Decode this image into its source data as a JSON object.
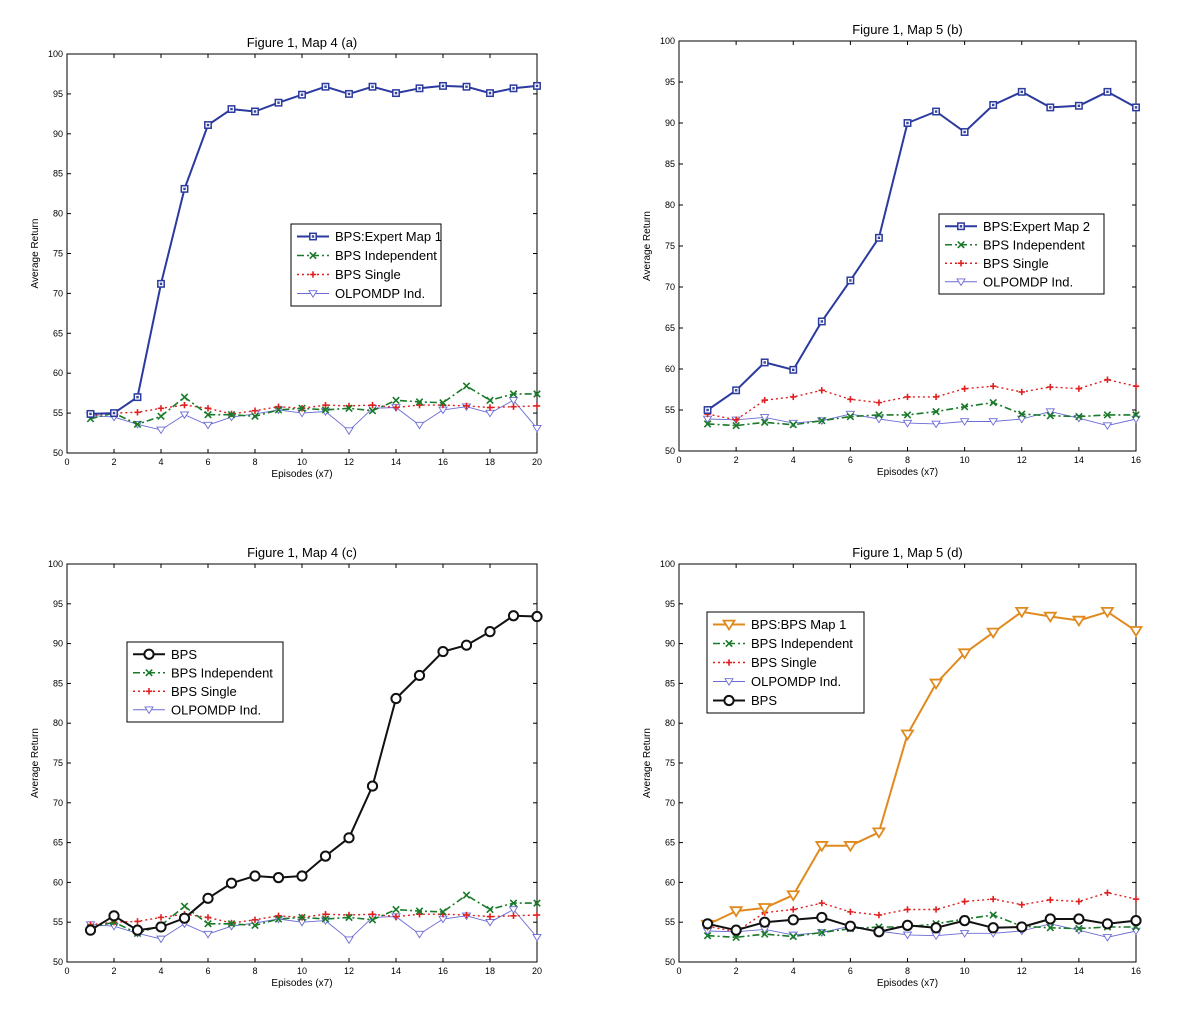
{
  "colors": {
    "blue_expert": "#2b3a9e",
    "green_independent": "#1a7a2a",
    "red_single": "#e02020",
    "violet_olpomdp": "#6b6bd6",
    "black_bps": "#111111",
    "orange_bps_map": "#e08a1e"
  },
  "chart_data": [
    {
      "type": "line",
      "title": "Figure 1, Map 4 (a)",
      "xlabel": "Episodes (x7)",
      "ylabel": "Average Return",
      "xlim": [
        0,
        20
      ],
      "ylim": [
        50,
        100
      ],
      "xticks": [
        0,
        2,
        4,
        6,
        8,
        10,
        12,
        14,
        16,
        18,
        20
      ],
      "yticks": [
        50,
        55,
        60,
        65,
        70,
        75,
        80,
        85,
        90,
        95,
        100
      ],
      "legend_position": "center-right",
      "series": [
        {
          "name": "BPS:Expert Map 1",
          "style": "solid-square",
          "color_key": "blue_expert",
          "x": [
            1,
            2,
            3,
            4,
            5,
            6,
            7,
            8,
            9,
            10,
            11,
            12,
            13,
            14,
            15,
            16,
            17,
            18,
            19,
            20
          ],
          "values": [
            54.9,
            55.0,
            57.0,
            71.2,
            83.1,
            91.1,
            93.1,
            92.8,
            93.9,
            94.9,
            95.9,
            95.0,
            95.9,
            95.1,
            95.7,
            96.0,
            95.9,
            95.1,
            95.7,
            96.0
          ]
        },
        {
          "name": "BPS Independent",
          "style": "dashdot-x",
          "color_key": "green_independent",
          "x": [
            1,
            2,
            3,
            4,
            5,
            6,
            7,
            8,
            9,
            10,
            11,
            12,
            13,
            14,
            15,
            16,
            17,
            18,
            19,
            20
          ],
          "values": [
            54.3,
            55.0,
            53.6,
            54.6,
            57.0,
            54.8,
            54.8,
            54.6,
            55.4,
            55.6,
            55.4,
            55.6,
            55.3,
            56.6,
            56.4,
            56.3,
            58.4,
            56.6,
            57.4,
            57.4
          ]
        },
        {
          "name": "BPS Single",
          "style": "dotted-plus",
          "color_key": "red_single",
          "x": [
            1,
            2,
            3,
            4,
            5,
            6,
            7,
            8,
            9,
            10,
            11,
            12,
            13,
            14,
            15,
            16,
            17,
            18,
            19,
            20
          ],
          "values": [
            54.7,
            55.0,
            55.1,
            55.6,
            56.0,
            55.6,
            54.9,
            55.3,
            55.8,
            55.6,
            56.0,
            55.9,
            56.0,
            55.7,
            56.0,
            56.0,
            55.9,
            55.7,
            55.8,
            55.9
          ]
        },
        {
          "name": "OLPOMDP Ind.",
          "style": "thin-triangle",
          "color_key": "violet_olpomdp",
          "x": [
            1,
            2,
            3,
            4,
            5,
            6,
            7,
            8,
            9,
            10,
            11,
            12,
            13,
            14,
            15,
            16,
            17,
            18,
            19,
            20
          ],
          "values": [
            54.7,
            54.5,
            53.6,
            52.9,
            54.8,
            53.5,
            54.5,
            54.9,
            55.4,
            55.0,
            55.2,
            52.8,
            55.6,
            55.7,
            53.5,
            55.4,
            55.8,
            55.0,
            56.6,
            53.1
          ]
        }
      ]
    },
    {
      "type": "line",
      "title": "Figure 1, Map 5 (b)",
      "xlabel": "Episodes (x7)",
      "ylabel": "Average Return",
      "xlim": [
        0,
        16
      ],
      "ylim": [
        50,
        100
      ],
      "xticks": [
        0,
        2,
        4,
        6,
        8,
        10,
        12,
        14,
        16
      ],
      "yticks": [
        50,
        55,
        60,
        65,
        70,
        75,
        80,
        85,
        90,
        95,
        100
      ],
      "legend_position": "center-right",
      "series": [
        {
          "name": "BPS:Expert Map 2",
          "style": "solid-square",
          "color_key": "blue_expert",
          "x": [
            1,
            2,
            3,
            4,
            5,
            6,
            7,
            8,
            9,
            10,
            11,
            12,
            13,
            14,
            15,
            16
          ],
          "values": [
            55.0,
            57.4,
            60.8,
            59.9,
            65.8,
            70.8,
            76.0,
            90.0,
            91.4,
            88.9,
            92.2,
            93.8,
            91.9,
            92.1,
            93.8,
            91.9
          ]
        },
        {
          "name": "BPS Independent",
          "style": "dashdot-x",
          "color_key": "green_independent",
          "x": [
            1,
            2,
            3,
            4,
            5,
            6,
            7,
            8,
            9,
            10,
            11,
            12,
            13,
            14,
            15,
            16
          ],
          "values": [
            53.3,
            53.1,
            53.5,
            53.2,
            53.7,
            54.2,
            54.4,
            54.4,
            54.8,
            55.4,
            55.9,
            54.5,
            54.3,
            54.2,
            54.4,
            54.4
          ]
        },
        {
          "name": "BPS Single",
          "style": "dotted-plus",
          "color_key": "red_single",
          "x": [
            1,
            2,
            3,
            4,
            5,
            6,
            7,
            8,
            9,
            10,
            11,
            12,
            13,
            14,
            15,
            16
          ],
          "values": [
            54.5,
            53.8,
            56.2,
            56.6,
            57.4,
            56.3,
            55.9,
            56.6,
            56.6,
            57.6,
            57.9,
            57.2,
            57.8,
            57.6,
            58.7,
            57.9
          ]
        },
        {
          "name": "OLPOMDP Ind.",
          "style": "thin-triangle",
          "color_key": "violet_olpomdp",
          "x": [
            1,
            2,
            3,
            4,
            5,
            6,
            7,
            8,
            9,
            10,
            11,
            12,
            13,
            14,
            15,
            16
          ],
          "values": [
            53.9,
            53.8,
            54.1,
            53.4,
            53.7,
            54.5,
            53.9,
            53.4,
            53.3,
            53.6,
            53.6,
            53.9,
            54.8,
            54.0,
            53.1,
            53.9
          ]
        }
      ]
    },
    {
      "type": "line",
      "title": "Figure 1, Map 4 (c)",
      "xlabel": "Episodes (x7)",
      "ylabel": "Average Return",
      "xlim": [
        0,
        20
      ],
      "ylim": [
        50,
        100
      ],
      "xticks": [
        0,
        2,
        4,
        6,
        8,
        10,
        12,
        14,
        16,
        18,
        20
      ],
      "yticks": [
        50,
        55,
        60,
        65,
        70,
        75,
        80,
        85,
        90,
        95,
        100
      ],
      "legend_position": "upper-left",
      "series": [
        {
          "name": "BPS",
          "style": "solid-circle",
          "color_key": "black_bps",
          "x": [
            1,
            2,
            3,
            4,
            5,
            6,
            7,
            8,
            9,
            10,
            11,
            12,
            13,
            14,
            15,
            16,
            17,
            18,
            19,
            20
          ],
          "values": [
            54.0,
            55.8,
            54.0,
            54.4,
            55.5,
            58.0,
            59.9,
            60.8,
            60.6,
            60.8,
            63.3,
            65.6,
            72.1,
            83.1,
            86.0,
            89.0,
            89.8,
            91.5,
            93.5,
            93.4
          ]
        },
        {
          "name": "BPS Independent",
          "style": "dashdot-x",
          "color_key": "green_independent",
          "x": [
            1,
            2,
            3,
            4,
            5,
            6,
            7,
            8,
            9,
            10,
            11,
            12,
            13,
            14,
            15,
            16,
            17,
            18,
            19,
            20
          ],
          "values": [
            54.3,
            55.0,
            53.6,
            54.6,
            57.0,
            54.8,
            54.8,
            54.6,
            55.4,
            55.6,
            55.4,
            55.6,
            55.3,
            56.6,
            56.4,
            56.3,
            58.4,
            56.6,
            57.4,
            57.4
          ]
        },
        {
          "name": "BPS Single",
          "style": "dotted-plus",
          "color_key": "red_single",
          "x": [
            1,
            2,
            3,
            4,
            5,
            6,
            7,
            8,
            9,
            10,
            11,
            12,
            13,
            14,
            15,
            16,
            17,
            18,
            19,
            20
          ],
          "values": [
            54.7,
            55.0,
            55.1,
            55.6,
            56.0,
            55.6,
            54.9,
            55.3,
            55.8,
            55.6,
            56.0,
            55.9,
            56.0,
            55.7,
            56.0,
            56.0,
            55.9,
            55.7,
            55.8,
            55.9
          ]
        },
        {
          "name": "OLPOMDP Ind.",
          "style": "thin-triangle",
          "color_key": "violet_olpomdp",
          "x": [
            1,
            2,
            3,
            4,
            5,
            6,
            7,
            8,
            9,
            10,
            11,
            12,
            13,
            14,
            15,
            16,
            17,
            18,
            19,
            20
          ],
          "values": [
            54.7,
            54.5,
            53.6,
            52.9,
            54.8,
            53.5,
            54.5,
            54.9,
            55.4,
            55.0,
            55.2,
            52.8,
            55.6,
            55.7,
            53.5,
            55.4,
            55.8,
            55.0,
            56.6,
            53.1
          ]
        }
      ]
    },
    {
      "type": "line",
      "title": "Figure 1, Map 5 (d)",
      "xlabel": "Episodes (x7)",
      "ylabel": "Average Return",
      "xlim": [
        0,
        16
      ],
      "ylim": [
        50,
        100
      ],
      "xticks": [
        0,
        2,
        4,
        6,
        8,
        10,
        12,
        14,
        16
      ],
      "yticks": [
        50,
        55,
        60,
        65,
        70,
        75,
        80,
        85,
        90,
        95,
        100
      ],
      "legend_position": "upper-left",
      "series": [
        {
          "name": "BPS:BPS Map 1",
          "style": "solid-triangle",
          "color_key": "orange_bps_map",
          "x": [
            1,
            2,
            3,
            4,
            5,
            6,
            7,
            8,
            9,
            10,
            11,
            12,
            13,
            14,
            15,
            16
          ],
          "values": [
            54.7,
            56.4,
            56.8,
            58.4,
            64.6,
            64.6,
            66.3,
            78.6,
            85.0,
            88.8,
            91.4,
            94.0,
            93.4,
            92.9,
            94.0,
            91.6
          ]
        },
        {
          "name": "BPS Independent",
          "style": "dashdot-x",
          "color_key": "green_independent",
          "x": [
            1,
            2,
            3,
            4,
            5,
            6,
            7,
            8,
            9,
            10,
            11,
            12,
            13,
            14,
            15,
            16
          ],
          "values": [
            53.3,
            53.1,
            53.5,
            53.2,
            53.7,
            54.2,
            54.4,
            54.4,
            54.8,
            55.4,
            55.9,
            54.5,
            54.3,
            54.2,
            54.4,
            54.4
          ]
        },
        {
          "name": "BPS Single",
          "style": "dotted-plus",
          "color_key": "red_single",
          "x": [
            1,
            2,
            3,
            4,
            5,
            6,
            7,
            8,
            9,
            10,
            11,
            12,
            13,
            14,
            15,
            16
          ],
          "values": [
            54.5,
            53.8,
            56.2,
            56.6,
            57.4,
            56.3,
            55.9,
            56.6,
            56.6,
            57.6,
            57.9,
            57.2,
            57.8,
            57.6,
            58.7,
            57.9
          ]
        },
        {
          "name": "OLPOMDP Ind.",
          "style": "thin-triangle",
          "color_key": "violet_olpomdp",
          "x": [
            1,
            2,
            3,
            4,
            5,
            6,
            7,
            8,
            9,
            10,
            11,
            12,
            13,
            14,
            15,
            16
          ],
          "values": [
            53.9,
            53.8,
            54.1,
            53.4,
            53.7,
            54.5,
            53.9,
            53.4,
            53.3,
            53.6,
            53.6,
            53.9,
            54.8,
            54.0,
            53.1,
            53.9
          ]
        },
        {
          "name": "BPS",
          "style": "solid-circle",
          "color_key": "black_bps",
          "x": [
            1,
            2,
            3,
            4,
            5,
            6,
            7,
            8,
            9,
            10,
            11,
            12,
            13,
            14,
            15,
            16
          ],
          "values": [
            54.8,
            54.0,
            55.0,
            55.3,
            55.6,
            54.5,
            53.8,
            54.6,
            54.3,
            55.2,
            54.3,
            54.4,
            55.4,
            55.4,
            54.8,
            55.2
          ]
        }
      ]
    }
  ]
}
